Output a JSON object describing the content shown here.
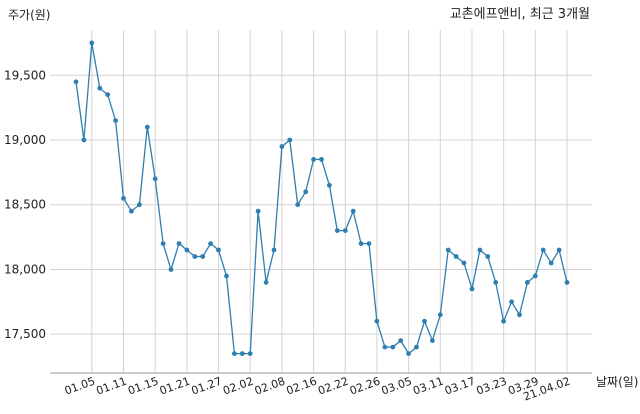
{
  "chart_data": {
    "type": "line",
    "title": "교촌에프앤비, 최근 3개월",
    "ylabel": "주가(원)",
    "xlabel": "날짜(일)",
    "ylim": [
      17200,
      19850
    ],
    "grid": true,
    "yticks": [
      17500,
      18000,
      18500,
      19000,
      19500
    ],
    "ytick_labels": [
      "17,500",
      "18,000",
      "18,500",
      "19,000",
      "19,500"
    ],
    "xtick_labels": [
      {
        "idx": 2,
        "label": "01.05"
      },
      {
        "idx": 6,
        "label": "01.11"
      },
      {
        "idx": 10,
        "label": "01.15"
      },
      {
        "idx": 14,
        "label": "01.21"
      },
      {
        "idx": 18,
        "label": "01.27"
      },
      {
        "idx": 22,
        "label": "02.02"
      },
      {
        "idx": 26,
        "label": "02.08"
      },
      {
        "idx": 30,
        "label": "02.16"
      },
      {
        "idx": 34,
        "label": "02.22"
      },
      {
        "idx": 38,
        "label": "02.26"
      },
      {
        "idx": 42,
        "label": "03.05"
      },
      {
        "idx": 46,
        "label": "03.11"
      },
      {
        "idx": 50,
        "label": "03.17"
      },
      {
        "idx": 54,
        "label": "03.23"
      },
      {
        "idx": 58,
        "label": "03.29"
      },
      {
        "idx": 62,
        "label": "21.04.02"
      }
    ],
    "color": "#2e7fb0",
    "series": [
      {
        "values": [
          19450,
          19000,
          19750,
          19400,
          19350,
          19150,
          18550,
          18450,
          18500,
          19100,
          18700,
          18200,
          18000,
          18200,
          18150,
          18100,
          18100,
          18200,
          18150,
          17950,
          17350,
          17350,
          17350,
          18450,
          17900,
          18150,
          18950,
          19000,
          18500,
          18600,
          18850,
          18850,
          18650,
          18300,
          18300,
          18450,
          18200,
          18200,
          17600,
          17400,
          17400,
          17450,
          17350,
          17400,
          17600,
          17450,
          17650,
          18150,
          18100,
          18050,
          17850,
          18150,
          18100,
          17900,
          17600,
          17750,
          17650,
          17900,
          17950,
          18150,
          18050,
          18150,
          17900
        ]
      }
    ]
  }
}
